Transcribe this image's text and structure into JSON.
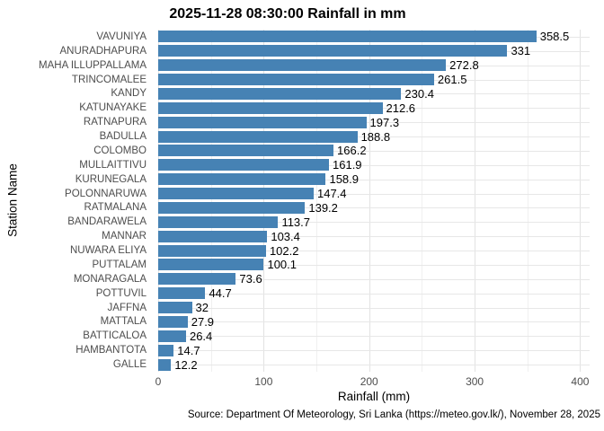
{
  "chart_data": {
    "type": "bar",
    "orientation": "horizontal",
    "title": "2025-11-28 08:30:00 Rainfall in mm",
    "xlabel": "Rainfall (mm)",
    "ylabel": "Station Name",
    "caption": "Source: Department Of Meteorology, Sri Lanka (https://meteo.gov.lk/), November 28, 2025",
    "categories": [
      "VAVUNIYA",
      "ANURADHAPURA",
      "MAHA ILLUPPALLAMA",
      "TRINCOMALEE",
      "KANDY",
      "KATUNAYAKE",
      "RATNAPURA",
      "BADULLA",
      "COLOMBO",
      "MULLAITTIVU",
      "KURUNEGALA",
      "POLONNARUWA",
      "RATMALANA",
      "BANDARAWELA",
      "MANNAR",
      "NUWARA ELIYA",
      "PUTTALAM",
      "MONARAGALA",
      "POTTUVIL",
      "JAFFNA",
      "MATTALA",
      "BATTICALOA",
      "HAMBANTOTA",
      "GALLE"
    ],
    "values": [
      358.5,
      331,
      272.8,
      261.5,
      230.4,
      212.6,
      197.3,
      188.8,
      166.2,
      161.9,
      158.9,
      147.4,
      139.2,
      113.7,
      103.4,
      102.2,
      100.1,
      73.6,
      44.7,
      32,
      27.9,
      26.4,
      14.7,
      12.2
    ],
    "value_labels": [
      "358.5",
      "331",
      "272.8",
      "261.5",
      "230.4",
      "212.6",
      "197.3",
      "188.8",
      "166.2",
      "161.9",
      "158.9",
      "147.4",
      "139.2",
      "113.7",
      "103.4",
      "102.2",
      "100.1",
      "73.6",
      "44.7",
      "32",
      "27.9",
      "26.4",
      "14.7",
      "12.2"
    ],
    "xlim": [
      0,
      409
    ],
    "xticks": [
      0,
      100,
      200,
      300,
      400
    ],
    "xticks_minor": [
      50,
      150,
      250,
      350
    ],
    "bar_color": "#4682B4",
    "grid": "on",
    "legend": "none"
  }
}
